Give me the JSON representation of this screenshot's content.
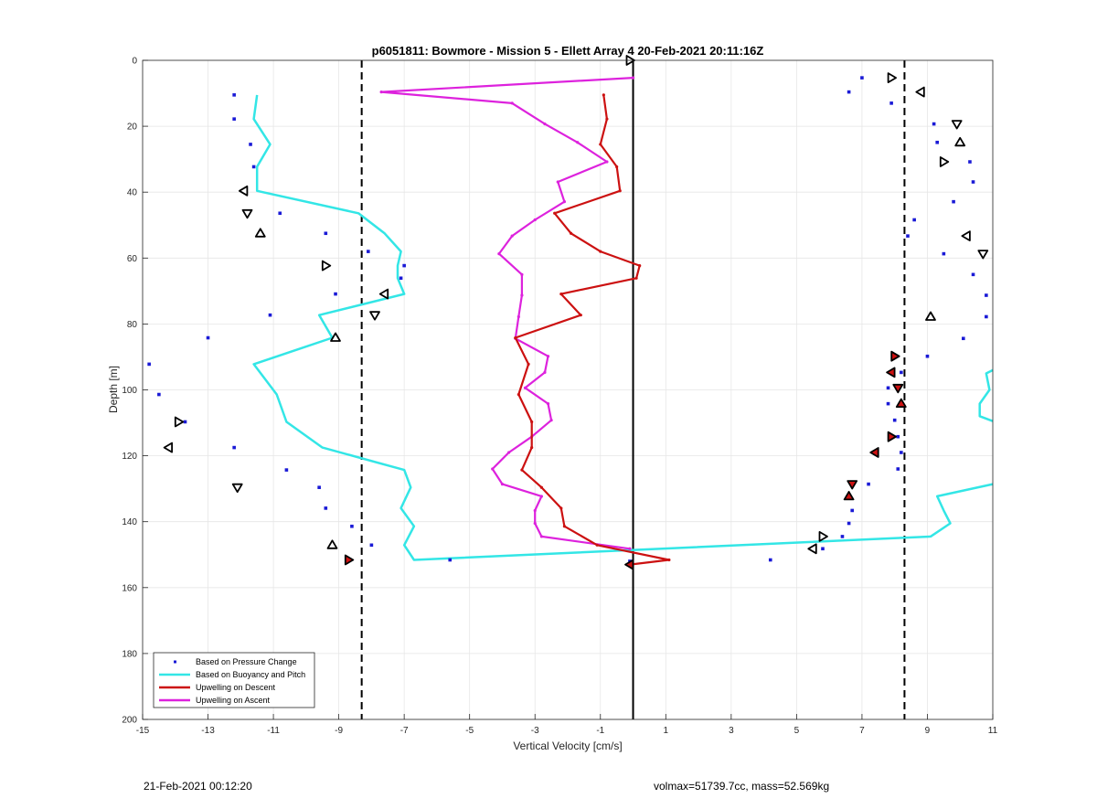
{
  "footer": {
    "timestamp": "21-Feb-2021 00:12:20",
    "info": "volmax=51739.7cc, mass=52.569kg"
  },
  "chart_data": {
    "type": "line",
    "title": "p6051811: Bowmore - Mission 5 - Ellett Array 4 20-Feb-2021 20:11:16Z",
    "xlabel": "Vertical Velocity [cm/s]",
    "ylabel": "Depth [m]",
    "xlim": [
      -15,
      11
    ],
    "ylim": [
      0,
      200
    ],
    "y_reversed": true,
    "xticks": [
      -15,
      -13,
      -11,
      -9,
      -7,
      -5,
      -3,
      -1,
      1,
      3,
      5,
      7,
      9,
      11
    ],
    "yticks": [
      0,
      20,
      40,
      60,
      80,
      100,
      120,
      140,
      160,
      180,
      200
    ],
    "grid": true,
    "legend_location": "bottom-left",
    "colors": {
      "pressure": "#1a1ad6",
      "buoyancy": "#33e6e6",
      "descent": "#cc1111",
      "ascent": "#dd22dd",
      "reference": "#000000"
    },
    "reference_lines": {
      "solid_x": 0,
      "dashed_x": [
        -8.3,
        8.3
      ]
    },
    "series": [
      {
        "name": "Based on Pressure Change",
        "style": "dots",
        "points": [
          [
            -12.2,
            10.5
          ],
          [
            -12.2,
            17.8
          ],
          [
            -11.7,
            25.5
          ],
          [
            -11.6,
            32.3
          ],
          [
            -10.8,
            46.4
          ],
          [
            -9.4,
            52.5
          ],
          [
            -8.1,
            58.0
          ],
          [
            -7.0,
            62.3
          ],
          [
            -7.1,
            66.1
          ],
          [
            -9.1,
            70.9
          ],
          [
            -11.1,
            77.3
          ],
          [
            -13.0,
            84.2
          ],
          [
            -14.8,
            92.2
          ],
          [
            -14.5,
            101.4
          ],
          [
            -13.7,
            109.7
          ],
          [
            -12.2,
            117.5
          ],
          [
            -10.6,
            124.3
          ],
          [
            -9.6,
            129.6
          ],
          [
            -9.4,
            135.9
          ],
          [
            -8.6,
            141.4
          ],
          [
            -8.0,
            147.1
          ],
          [
            -5.6,
            151.6
          ],
          [
            -0.1,
            152.0
          ],
          [
            4.2,
            151.6
          ],
          [
            5.8,
            148.2
          ],
          [
            6.4,
            144.5
          ],
          [
            6.6,
            140.5
          ],
          [
            6.7,
            136.6
          ],
          [
            7.2,
            128.6
          ],
          [
            8.1,
            124.0
          ],
          [
            8.2,
            119.0
          ],
          [
            8.1,
            114.2
          ],
          [
            8.0,
            109.2
          ],
          [
            7.8,
            104.2
          ],
          [
            7.8,
            99.4
          ],
          [
            8.2,
            94.7
          ],
          [
            9.0,
            89.8
          ],
          [
            10.1,
            84.4
          ],
          [
            10.8,
            77.8
          ],
          [
            10.8,
            71.3
          ],
          [
            10.4,
            65.0
          ],
          [
            9.5,
            58.7
          ],
          [
            8.4,
            53.3
          ],
          [
            8.6,
            48.4
          ],
          [
            9.8,
            42.9
          ],
          [
            10.4,
            36.9
          ],
          [
            10.3,
            30.8
          ],
          [
            9.3,
            24.9
          ],
          [
            9.2,
            19.3
          ],
          [
            7.9,
            13.0
          ],
          [
            6.6,
            9.6
          ],
          [
            7.0,
            5.3
          ]
        ]
      },
      {
        "name": "Based on Buoyancy and Pitch",
        "style": "line",
        "segments": [
          [
            [
              -11.5,
              10.5
            ],
            [
              -11.6,
              17.8
            ],
            [
              -11.1,
              25.5
            ],
            [
              -11.5,
              32.3
            ],
            [
              -11.5,
              39.6
            ],
            [
              -8.4,
              46.4
            ],
            [
              -7.6,
              52.5
            ],
            [
              -7.1,
              58.0
            ],
            [
              -7.2,
              62.3
            ],
            [
              -7.2,
              66.1
            ],
            [
              -7.0,
              70.9
            ],
            [
              -9.6,
              77.3
            ],
            [
              -9.2,
              84.2
            ],
            [
              -11.6,
              92.2
            ],
            [
              -10.9,
              101.4
            ],
            [
              -10.6,
              109.7
            ],
            [
              -9.5,
              117.5
            ],
            [
              -7.0,
              124.3
            ],
            [
              -6.8,
              129.6
            ],
            [
              -7.1,
              135.9
            ],
            [
              -6.7,
              141.4
            ],
            [
              -7.0,
              147.1
            ],
            [
              -6.7,
              151.6
            ],
            [
              9.1,
              144.5
            ],
            [
              9.7,
              140.5
            ],
            [
              9.5,
              136.6
            ],
            [
              9.3,
              132.3
            ],
            [
              11.0,
              128.6
            ]
          ],
          [
            [
              11.0,
              94.0
            ],
            [
              10.8,
              95.0
            ],
            [
              10.9,
              100.0
            ],
            [
              10.6,
              104.2
            ],
            [
              10.6,
              108.0
            ],
            [
              11.0,
              109.5
            ]
          ]
        ]
      },
      {
        "name": "Upwelling on Descent",
        "style": "line",
        "points": [
          [
            -0.9,
            10.5
          ],
          [
            -0.8,
            17.8
          ],
          [
            -1.0,
            25.5
          ],
          [
            -0.5,
            32.3
          ],
          [
            -0.4,
            39.6
          ],
          [
            -2.4,
            46.4
          ],
          [
            -1.9,
            52.5
          ],
          [
            -1.0,
            58.0
          ],
          [
            0.2,
            62.3
          ],
          [
            0.1,
            66.1
          ],
          [
            -2.2,
            70.9
          ],
          [
            -1.6,
            77.3
          ],
          [
            -3.6,
            84.2
          ],
          [
            -3.2,
            92.2
          ],
          [
            -3.5,
            101.4
          ],
          [
            -3.1,
            109.7
          ],
          [
            -3.1,
            117.5
          ],
          [
            -3.4,
            124.3
          ],
          [
            -2.8,
            129.6
          ],
          [
            -2.2,
            135.9
          ],
          [
            -2.1,
            141.4
          ],
          [
            -1.1,
            147.1
          ],
          [
            1.1,
            151.6
          ],
          [
            -0.1,
            153.0
          ]
        ]
      },
      {
        "name": "Upwelling on Ascent",
        "style": "line",
        "points": [
          [
            0.0,
            5.3
          ],
          [
            -7.7,
            9.6
          ],
          [
            -3.7,
            13.0
          ],
          [
            -2.7,
            19.3
          ],
          [
            -1.7,
            24.9
          ],
          [
            -0.8,
            30.8
          ],
          [
            -2.3,
            36.9
          ],
          [
            -2.1,
            42.9
          ],
          [
            -3.0,
            48.4
          ],
          [
            -3.7,
            53.3
          ],
          [
            -4.1,
            58.7
          ],
          [
            -3.4,
            65.0
          ],
          [
            -3.4,
            71.3
          ],
          [
            -3.5,
            77.8
          ],
          [
            -3.6,
            84.4
          ],
          [
            -2.6,
            89.8
          ],
          [
            -2.7,
            94.7
          ],
          [
            -3.3,
            99.4
          ],
          [
            -2.6,
            104.2
          ],
          [
            -2.5,
            109.2
          ],
          [
            -3.1,
            114.2
          ],
          [
            -3.8,
            119.0
          ],
          [
            -4.3,
            124.0
          ],
          [
            -4.0,
            128.6
          ],
          [
            -2.8,
            132.3
          ],
          [
            -3.0,
            136.6
          ],
          [
            -3.0,
            140.5
          ],
          [
            -2.8,
            144.5
          ],
          [
            -0.1,
            148.2
          ]
        ]
      }
    ],
    "markers": {
      "descent_open": [
        [
          -0.1,
          0
        ],
        [
          -11.9,
          39.6
        ],
        [
          -11.8,
          46.4
        ],
        [
          -11.4,
          52.5
        ],
        [
          -9.4,
          62.3
        ],
        [
          -7.6,
          70.9
        ],
        [
          -7.9,
          77.3
        ],
        [
          -9.1,
          84.2
        ],
        [
          -13.9,
          109.7
        ],
        [
          -14.2,
          117.5
        ],
        [
          -12.1,
          129.6
        ],
        [
          -9.2,
          147.1
        ]
      ],
      "descent_filled": [
        [
          -8.7,
          151.6
        ],
        [
          -0.1,
          153.0
        ]
      ],
      "ascent_open": [
        [
          7.9,
          5.3
        ],
        [
          8.8,
          9.6
        ],
        [
          9.9,
          19.3
        ],
        [
          10.0,
          24.9
        ],
        [
          9.5,
          30.8
        ],
        [
          10.2,
          53.3
        ],
        [
          10.7,
          58.7
        ],
        [
          9.1,
          77.8
        ],
        [
          5.8,
          144.5
        ],
        [
          5.5,
          148.2
        ]
      ],
      "ascent_filled": [
        [
          8.0,
          89.8
        ],
        [
          7.9,
          94.7
        ],
        [
          8.1,
          99.4
        ],
        [
          8.2,
          104.2
        ],
        [
          7.9,
          114.2
        ],
        [
          7.4,
          119.0
        ],
        [
          6.7,
          128.6
        ],
        [
          6.6,
          132.3
        ]
      ]
    }
  }
}
